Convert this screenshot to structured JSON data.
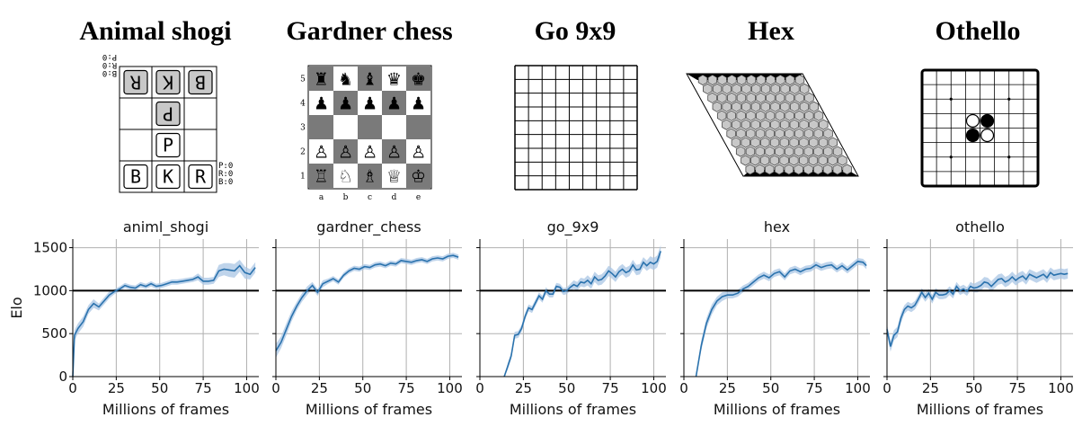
{
  "figure": {
    "game_titles": [
      "Animal shogi",
      "Gardner chess",
      "Go 9x9",
      "Hex",
      "Othello"
    ]
  },
  "boards": {
    "animal_shogi": {
      "top_counts": [
        "B:0",
        "R:0",
        "P:0"
      ],
      "bottom_counts": [
        "P:0",
        "R:0",
        "B:0"
      ],
      "pieces": [
        {
          "row": 0,
          "col": 0,
          "letter": "R",
          "owner": "opponent"
        },
        {
          "row": 0,
          "col": 1,
          "letter": "K",
          "owner": "opponent"
        },
        {
          "row": 0,
          "col": 2,
          "letter": "B",
          "owner": "opponent"
        },
        {
          "row": 1,
          "col": 1,
          "letter": "P",
          "owner": "opponent"
        },
        {
          "row": 2,
          "col": 1,
          "letter": "P",
          "owner": "player"
        },
        {
          "row": 3,
          "col": 0,
          "letter": "B",
          "owner": "player"
        },
        {
          "row": 3,
          "col": 1,
          "letter": "K",
          "owner": "player"
        },
        {
          "row": 3,
          "col": 2,
          "letter": "R",
          "owner": "player"
        }
      ]
    },
    "gardner_chess": {
      "files": [
        "a",
        "b",
        "c",
        "d",
        "e"
      ],
      "ranks": [
        "5",
        "4",
        "3",
        "2",
        "1"
      ],
      "rows": [
        [
          "♜",
          "♞",
          "♝",
          "♛",
          "♚"
        ],
        [
          "♟",
          "♟",
          "♟",
          "♟",
          "♟"
        ],
        [
          "",
          "",
          "",
          "",
          ""
        ],
        [
          "♙",
          "♙",
          "♙",
          "♙",
          "♙"
        ],
        [
          "♖",
          "♘",
          "♗",
          "♕",
          "♔"
        ]
      ]
    },
    "go": {
      "size": 9
    },
    "hex": {
      "size": 11
    },
    "othello": {
      "size": 8,
      "stones": [
        {
          "row": 3,
          "col": 3,
          "color": "white"
        },
        {
          "row": 3,
          "col": 4,
          "color": "black"
        },
        {
          "row": 4,
          "col": 3,
          "color": "black"
        },
        {
          "row": 4,
          "col": 4,
          "color": "white"
        }
      ]
    }
  },
  "chart_data": [
    {
      "type": "line",
      "title": "animl_shogi",
      "xlabel": "Millions of frames",
      "ylabel": "Elo",
      "xlim": [
        0,
        107
      ],
      "ylim": [
        0,
        1600
      ],
      "xticks": [
        0,
        25,
        50,
        75,
        100
      ],
      "yticks": [
        0,
        500,
        1000,
        1500
      ],
      "reference_y": 1000,
      "color": "#2a72ad",
      "x": [
        0,
        1,
        3,
        6,
        9,
        12,
        15,
        18,
        21,
        24,
        27,
        30,
        33,
        36,
        39,
        42,
        45,
        48,
        51,
        54,
        57,
        60,
        63,
        66,
        69,
        72,
        75,
        78,
        81,
        84,
        87,
        90,
        93,
        96,
        99,
        102,
        105
      ],
      "y": [
        0,
        480,
        560,
        640,
        780,
        850,
        810,
        880,
        950,
        990,
        1020,
        1060,
        1040,
        1030,
        1070,
        1050,
        1080,
        1050,
        1060,
        1080,
        1100,
        1100,
        1110,
        1120,
        1130,
        1160,
        1110,
        1110,
        1120,
        1230,
        1250,
        1240,
        1230,
        1290,
        1210,
        1190,
        1270
      ],
      "band": [
        0,
        60,
        60,
        60,
        50,
        50,
        40,
        40,
        40,
        30,
        30,
        30,
        30,
        30,
        30,
        30,
        30,
        30,
        30,
        30,
        30,
        30,
        30,
        30,
        30,
        40,
        40,
        40,
        40,
        70,
        70,
        80,
        80,
        70,
        70,
        60,
        60
      ]
    },
    {
      "type": "line",
      "title": "gardner_chess",
      "xlabel": "Millions of frames",
      "ylabel": "",
      "xlim": [
        0,
        107
      ],
      "ylim": [
        0,
        1600
      ],
      "xticks": [
        0,
        25,
        50,
        75,
        100
      ],
      "yticks": [
        0,
        500,
        1000,
        1500
      ],
      "reference_y": 1000,
      "color": "#2a72ad",
      "x": [
        0,
        3,
        6,
        9,
        12,
        15,
        18,
        21,
        24,
        27,
        30,
        33,
        36,
        39,
        42,
        45,
        48,
        51,
        54,
        57,
        60,
        63,
        66,
        69,
        72,
        75,
        78,
        81,
        84,
        87,
        90,
        93,
        96,
        99,
        102,
        105
      ],
      "y": [
        300,
        400,
        550,
        700,
        820,
        920,
        1000,
        1060,
        980,
        1080,
        1110,
        1140,
        1100,
        1180,
        1230,
        1260,
        1250,
        1280,
        1270,
        1300,
        1310,
        1290,
        1320,
        1310,
        1350,
        1340,
        1330,
        1350,
        1360,
        1340,
        1370,
        1380,
        1370,
        1400,
        1410,
        1390
      ],
      "band": [
        80,
        70,
        70,
        60,
        50,
        50,
        50,
        40,
        40,
        40,
        30,
        30,
        30,
        30,
        30,
        30,
        30,
        30,
        30,
        30,
        30,
        30,
        30,
        30,
        30,
        30,
        30,
        30,
        30,
        30,
        30,
        30,
        30,
        30,
        30,
        30
      ]
    },
    {
      "type": "line",
      "title": "go_9x9",
      "xlabel": "Millions of frames",
      "ylabel": "",
      "xlim": [
        0,
        107
      ],
      "ylim": [
        0,
        1600
      ],
      "xticks": [
        0,
        25,
        50,
        75,
        100
      ],
      "yticks": [
        0,
        500,
        1000,
        1500
      ],
      "reference_y": 1000,
      "color": "#2a72ad",
      "x": [
        14,
        16,
        18,
        20,
        22,
        24,
        26,
        28,
        30,
        32,
        34,
        36,
        38,
        40,
        42,
        44,
        46,
        48,
        50,
        52,
        54,
        56,
        58,
        60,
        62,
        64,
        66,
        68,
        70,
        72,
        74,
        76,
        78,
        80,
        82,
        84,
        86,
        88,
        90,
        92,
        94,
        96,
        98,
        100,
        102,
        104
      ],
      "y": [
        0,
        120,
        240,
        480,
        490,
        560,
        700,
        800,
        780,
        860,
        940,
        900,
        1000,
        960,
        960,
        1050,
        1040,
        990,
        1000,
        1040,
        1070,
        1050,
        1100,
        1090,
        1120,
        1080,
        1160,
        1120,
        1130,
        1170,
        1230,
        1200,
        1160,
        1220,
        1250,
        1210,
        1230,
        1300,
        1240,
        1250,
        1330,
        1290,
        1330,
        1310,
        1340,
        1460
      ],
      "band": [
        0,
        40,
        40,
        40,
        40,
        40,
        40,
        40,
        40,
        40,
        40,
        40,
        40,
        40,
        40,
        40,
        40,
        40,
        40,
        40,
        50,
        50,
        50,
        50,
        60,
        60,
        60,
        60,
        60,
        60,
        60,
        60,
        60,
        60,
        60,
        60,
        60,
        60,
        60,
        60,
        60,
        60,
        70,
        70,
        70,
        70
      ]
    },
    {
      "type": "line",
      "title": "hex",
      "xlabel": "Millions of frames",
      "ylabel": "",
      "xlim": [
        0,
        107
      ],
      "ylim": [
        0,
        1600
      ],
      "xticks": [
        0,
        25,
        50,
        75,
        100
      ],
      "yticks": [
        0,
        500,
        1000,
        1500
      ],
      "reference_y": 1000,
      "color": "#2a72ad",
      "x": [
        7,
        10,
        13,
        16,
        19,
        22,
        25,
        28,
        31,
        34,
        37,
        40,
        43,
        46,
        49,
        52,
        55,
        58,
        61,
        64,
        67,
        70,
        73,
        76,
        79,
        82,
        85,
        88,
        91,
        94,
        97,
        100,
        103,
        105
      ],
      "y": [
        0,
        360,
        620,
        780,
        880,
        930,
        950,
        950,
        970,
        1020,
        1050,
        1100,
        1150,
        1180,
        1150,
        1200,
        1220,
        1160,
        1230,
        1250,
        1220,
        1250,
        1260,
        1300,
        1270,
        1290,
        1300,
        1250,
        1290,
        1240,
        1290,
        1340,
        1330,
        1290
      ],
      "band": [
        0,
        60,
        60,
        60,
        50,
        50,
        40,
        40,
        40,
        40,
        40,
        40,
        40,
        40,
        40,
        40,
        40,
        40,
        40,
        40,
        40,
        40,
        40,
        40,
        40,
        40,
        40,
        40,
        40,
        40,
        40,
        40,
        40,
        40
      ]
    },
    {
      "type": "line",
      "title": "othello",
      "xlabel": "Millions of frames",
      "ylabel": "",
      "xlim": [
        0,
        107
      ],
      "ylim": [
        0,
        1600
      ],
      "xticks": [
        0,
        25,
        50,
        75,
        100
      ],
      "yticks": [
        0,
        500,
        1000,
        1500
      ],
      "reference_y": 1000,
      "color": "#2a72ad",
      "x": [
        0,
        2,
        4,
        6,
        8,
        10,
        12,
        14,
        16,
        18,
        20,
        22,
        24,
        26,
        28,
        30,
        32,
        34,
        36,
        38,
        40,
        42,
        44,
        46,
        48,
        50,
        52,
        54,
        56,
        58,
        60,
        62,
        64,
        66,
        68,
        70,
        72,
        74,
        76,
        78,
        80,
        82,
        84,
        86,
        88,
        90,
        92,
        94,
        96,
        98,
        100,
        102,
        104
      ],
      "y": [
        550,
        350,
        480,
        520,
        680,
        780,
        820,
        800,
        830,
        900,
        980,
        920,
        970,
        900,
        980,
        950,
        950,
        960,
        1000,
        960,
        1050,
        1000,
        1020,
        990,
        1050,
        1030,
        1040,
        1060,
        1100,
        1090,
        1050,
        1090,
        1130,
        1140,
        1100,
        1120,
        1160,
        1120,
        1150,
        1170,
        1130,
        1190,
        1170,
        1150,
        1170,
        1190,
        1150,
        1210,
        1180,
        1190,
        1200,
        1190,
        1200
      ],
      "band": [
        60,
        60,
        60,
        60,
        60,
        50,
        50,
        50,
        50,
        50,
        50,
        50,
        50,
        50,
        50,
        50,
        50,
        50,
        50,
        50,
        50,
        50,
        50,
        50,
        50,
        50,
        60,
        60,
        60,
        60,
        60,
        60,
        60,
        60,
        60,
        60,
        60,
        60,
        60,
        60,
        60,
        60,
        60,
        60,
        60,
        60,
        60,
        60,
        60,
        60,
        60,
        60,
        60
      ]
    }
  ]
}
